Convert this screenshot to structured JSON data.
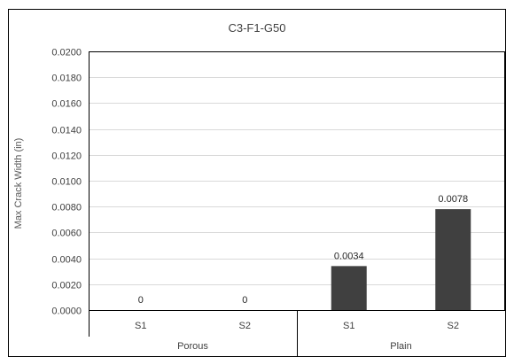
{
  "chart_data": {
    "type": "bar",
    "title": "C3-F1-G50",
    "xlabel": "",
    "ylabel": "Max Crack Width (in)",
    "ylim": [
      0,
      0.02
    ],
    "yticks": [
      "0.0000",
      "0.0020",
      "0.0040",
      "0.0060",
      "0.0080",
      "0.0100",
      "0.0120",
      "0.0140",
      "0.0160",
      "0.0180",
      "0.0200"
    ],
    "groups": [
      "Porous",
      "Plain"
    ],
    "categories": [
      "S1",
      "S2",
      "S1",
      "S2"
    ],
    "category_groups": [
      0,
      0,
      1,
      1
    ],
    "values": [
      0,
      0,
      0.0034,
      0.0078
    ],
    "data_labels": [
      "0",
      "0",
      "0.0034",
      "0.0078"
    ],
    "bar_color": "#404040",
    "grid": true,
    "legend": "none"
  }
}
